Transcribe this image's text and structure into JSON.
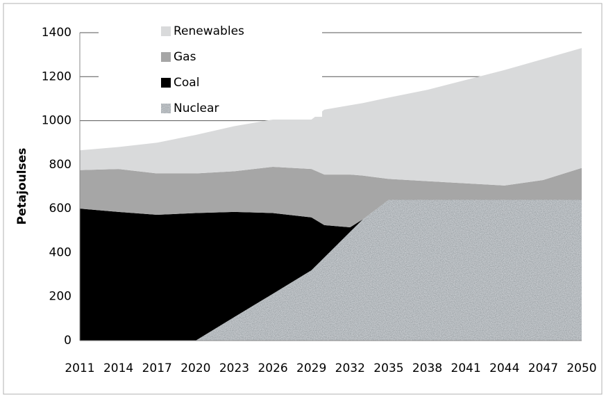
{
  "chart_data": {
    "type": "stacked_area",
    "ylabel": "Petajoulses",
    "x": [
      2011,
      2014,
      2017,
      2020,
      2023,
      2026,
      2029,
      2030,
      2032,
      2033,
      2035,
      2038,
      2041,
      2044,
      2047,
      2050
    ],
    "series": [
      {
        "name": "Nuclear",
        "color": "#a8a8a8",
        "values": [
          0,
          0,
          0,
          0,
          107,
          213,
          320,
          378,
          494,
          552,
          640,
          640,
          640,
          640,
          640,
          640
        ]
      },
      {
        "name": "Coal",
        "color": "#000000",
        "values": [
          600,
          585,
          572,
          580,
          478,
          367,
          240,
          147,
          21,
          0,
          0,
          0,
          0,
          0,
          0,
          0
        ]
      },
      {
        "name": "Gas",
        "color": "#a6a6a6",
        "values": [
          175,
          195,
          188,
          180,
          185,
          210,
          220,
          230,
          240,
          198,
          95,
          85,
          75,
          65,
          90,
          145
        ]
      },
      {
        "name": "Renewables",
        "color": "#d9dadb",
        "values": [
          90,
          100,
          140,
          175,
          205,
          215,
          225,
          295,
          315,
          330,
          370,
          415,
          470,
          525,
          550,
          545
        ]
      }
    ],
    "xlim": [
      2011,
      2050
    ],
    "xticks": [
      2011,
      2014,
      2017,
      2020,
      2023,
      2026,
      2029,
      2032,
      2035,
      2038,
      2041,
      2044,
      2047,
      2050
    ],
    "ylim": [
      0,
      1400
    ],
    "yticks": [
      0,
      200,
      400,
      600,
      800,
      1000,
      1200,
      1400
    ],
    "grid": true
  }
}
